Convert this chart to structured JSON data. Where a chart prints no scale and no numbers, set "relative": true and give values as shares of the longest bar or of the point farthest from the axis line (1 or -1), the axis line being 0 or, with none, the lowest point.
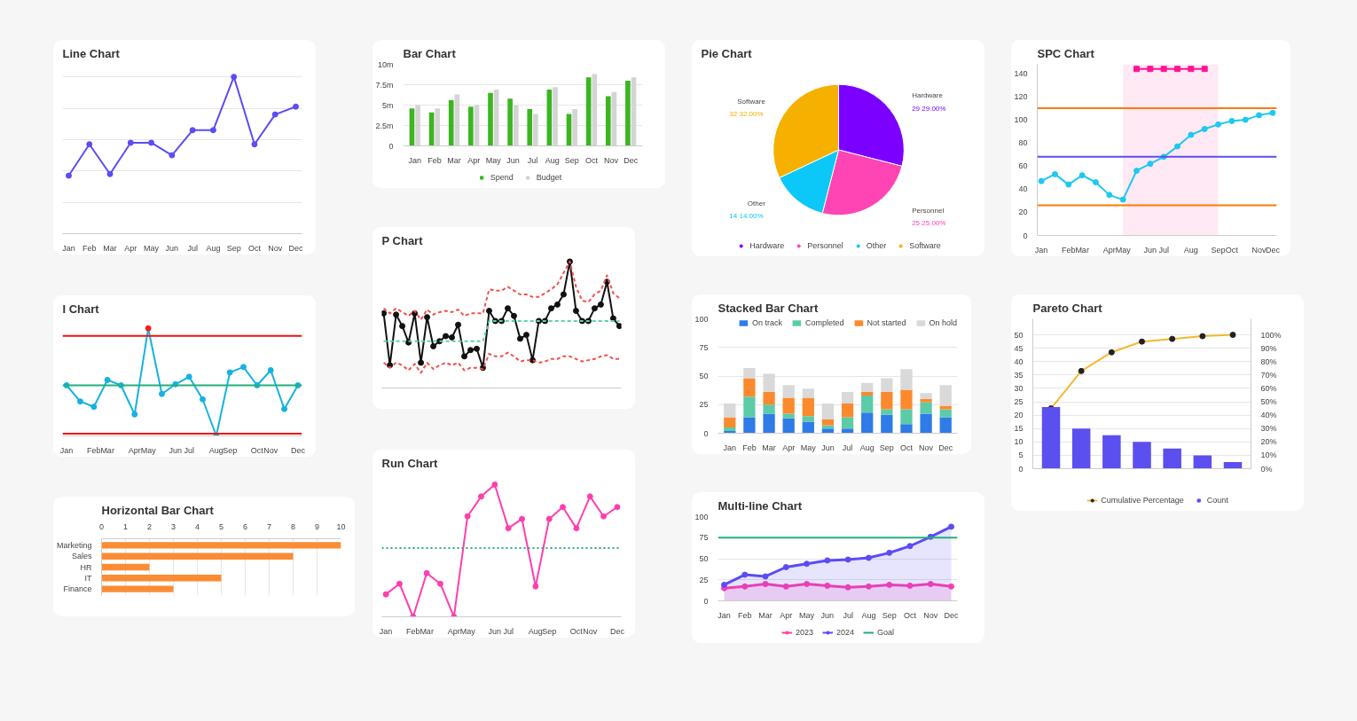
{
  "chart_data": [
    {
      "type": "line",
      "title": "Line Chart",
      "categories": [
        "Jan",
        "Feb",
        "Mar",
        "Apr",
        "May",
        "Jun",
        "Jul",
        "Aug",
        "Sep",
        "Oct",
        "Nov",
        "Dec"
      ],
      "relative": true,
      "grid": "y",
      "marker": "circle",
      "series": [
        {
          "color": "#5b4cf5",
          "values": [
            0.37,
            0.57,
            0.38,
            0.58,
            0.58,
            0.5,
            0.66,
            0.66,
            1,
            0.57,
            0.76,
            0.81
          ]
        }
      ]
    },
    {
      "type": "line",
      "title": "I Chart",
      "categories": [
        "Jan",
        null,
        "Feb",
        "Mar",
        null,
        "Apr",
        "May",
        null,
        "Jun",
        "Jul",
        null,
        "Aug",
        "Sep",
        null,
        "Oct",
        "Nov",
        null,
        "Dec"
      ],
      "relative": true,
      "marker": "circle",
      "series": [
        {
          "color": "#16b2e0",
          "values": [
            0.47,
            0.32,
            0.27,
            0.52,
            0.47,
            0.2,
            1,
            0.39,
            0.48,
            0.55,
            0.34,
            0,
            0.59,
            0.64,
            0.47,
            0.61,
            0.25,
            0.47
          ],
          "colors": [
            "#16b2e0",
            "#16b2e0",
            "#16b2e0",
            "#16b2e0",
            "#16b2e0",
            "#16b2e0",
            "#ff1a1a",
            "#16b2e0",
            "#16b2e0",
            "#16b2e0",
            "#16b2e0",
            "#16b2e0",
            "#16b2e0",
            "#16b2e0",
            "#16b2e0",
            "#16b2e0",
            "#16b2e0",
            "#16b2e0"
          ]
        }
      ],
      "ref_lines": [
        {
          "axis": "y",
          "value": 0.93,
          "color": "#ee1111"
        },
        {
          "axis": "y",
          "value": 0.47,
          "color": "#22b07d"
        },
        {
          "axis": "y",
          "value": 0.02,
          "color": "#ee1111"
        }
      ]
    },
    {
      "type": "bar",
      "orientation": "horizontal",
      "title": "Horizontal Bar Chart",
      "categories": [
        "Marketing",
        "Sales",
        "HR",
        "IT",
        "Finance"
      ],
      "values": [
        10,
        8,
        2,
        5,
        3
      ],
      "color": "#fb8c34",
      "xlim": [
        0,
        10
      ],
      "xticks": [
        0,
        1,
        2,
        3,
        4,
        5,
        6,
        7,
        8,
        9,
        10
      ],
      "grid": "x"
    },
    {
      "type": "bar",
      "title": "Bar Chart",
      "categories": [
        "Jan",
        "Feb",
        "Mar",
        "Apr",
        "May",
        "Jun",
        "Jul",
        "Aug",
        "Sep",
        "Oct",
        "Nov",
        "Dec"
      ],
      "ylim": [
        0,
        10
      ],
      "yticks": [
        0,
        {
          "value": 2.5,
          "label": "2.5m"
        },
        {
          "value": 5,
          "label": "5m"
        },
        {
          "value": 7.5,
          "label": "7.5m"
        },
        {
          "value": 10,
          "label": "10m"
        }
      ],
      "grid": "y",
      "legend": "bottom",
      "series": [
        {
          "name": "Spend",
          "color": "#3cb521",
          "values": [
            4.6,
            4.1,
            5.6,
            4.8,
            6.5,
            5.8,
            4.5,
            6.9,
            3.9,
            8.4,
            6.1,
            8.0
          ]
        },
        {
          "name": "Budget",
          "color": "#d4d4d4",
          "values": [
            5.0,
            4.6,
            6.3,
            5.0,
            6.9,
            5.0,
            3.9,
            7.2,
            4.5,
            8.8,
            6.6,
            8.4
          ]
        }
      ]
    },
    {
      "type": "line",
      "title": "P Chart",
      "categories": [
        null,
        null,
        null,
        null,
        null,
        null,
        null,
        null,
        null,
        null,
        null,
        null,
        null,
        null,
        null,
        null,
        null,
        null,
        null,
        null,
        null,
        null,
        null,
        null,
        null,
        null,
        null,
        null,
        null,
        null,
        null,
        null,
        null,
        null,
        null,
        null,
        null,
        null,
        null
      ],
      "relative": true,
      "series": [
        {
          "color": "#111111",
          "marker": "circle",
          "values": [
            0.59,
            0.18,
            0.58,
            0.49,
            0.36,
            0.59,
            0.2,
            0.56,
            0.33,
            0.37,
            0.41,
            0.4,
            0.5,
            0.25,
            0.3,
            0.31,
            0.16,
            0.61,
            0.53,
            0.53,
            0.63,
            0.57,
            0.39,
            0.42,
            0.22,
            0.53,
            0.53,
            0.63,
            0.66,
            0.74,
            1,
            0.61,
            0.53,
            0.53,
            0.63,
            0.66,
            0.84,
            0.55,
            0.49
          ]
        },
        {
          "color": "#5fd3a8",
          "line_style": "dashed",
          "values": [
            0.37,
            0.37,
            0.37,
            0.37,
            0.37,
            0.37,
            0.37,
            0.37,
            0.37,
            0.37,
            0.37,
            0.37,
            0.37,
            0.37,
            0.37,
            0.37,
            0.37,
            0.53,
            0.53,
            0.53,
            0.53,
            0.53,
            0.53,
            0.53,
            0.53,
            0.53,
            0.53,
            0.53,
            0.53,
            0.53,
            0.53,
            0.53,
            0.53,
            0.53,
            0.53,
            0.53,
            0.53,
            0.53,
            0.53
          ]
        },
        {
          "color": "#f0524f",
          "line_style": "dashed",
          "values": [
            0.63,
            0.59,
            0.63,
            0.6,
            0.57,
            0.61,
            0.54,
            0.62,
            0.58,
            0.6,
            0.61,
            0.6,
            0.62,
            0.57,
            0.59,
            0.59,
            0.59,
            0.78,
            0.77,
            0.77,
            0.8,
            0.77,
            0.74,
            0.74,
            0.72,
            0.72,
            0.75,
            0.78,
            0.82,
            0.91,
            1,
            0.8,
            0.69,
            0.68,
            0.74,
            0.77,
            0.89,
            0.75,
            0.71
          ]
        },
        {
          "color": "#f0524f",
          "line_style": "dashed",
          "values": [
            0.2,
            0.16,
            0.2,
            0.18,
            0.14,
            0.19,
            0.12,
            0.2,
            0.15,
            0.18,
            0.2,
            0.18,
            0.2,
            0.14,
            0.16,
            0.16,
            0.15,
            0.27,
            0.25,
            0.25,
            0.28,
            0.25,
            0.21,
            0.22,
            0.22,
            0.2,
            0.21,
            0.23,
            0.23,
            0.25,
            0.25,
            0.23,
            0.21,
            0.22,
            0.23,
            0.25,
            0.26,
            0.23,
            0.23
          ]
        }
      ]
    },
    {
      "type": "line",
      "title": "Run Chart",
      "categories": [
        "Jan",
        null,
        "Feb",
        "Mar",
        null,
        "Apr",
        "May",
        null,
        "Jun",
        "Jul",
        null,
        "Aug",
        "Sep",
        null,
        "Oct",
        "Nov",
        null,
        "Dec"
      ],
      "relative": true,
      "marker": "circle",
      "series": [
        {
          "color": "#ff3fae",
          "values": [
            0.17,
            0.25,
            0,
            0.33,
            0.25,
            0,
            0.76,
            0.91,
            1,
            0.67,
            0.74,
            0.23,
            0.74,
            0.83,
            0.67,
            0.91,
            0.76,
            0.83
          ]
        }
      ],
      "ref_lines": [
        {
          "axis": "y",
          "value": 0.52,
          "color": "#22b07d",
          "line_style": "dotted"
        }
      ]
    },
    {
      "type": "pie",
      "title": "Pie Chart",
      "categories": [
        "Hardware",
        "Personnel",
        "Other",
        "Software"
      ],
      "values": [
        29,
        25,
        14,
        32
      ],
      "colors": [
        "#7b00ff",
        "#ff44b4",
        "#0cc8f8",
        "#f5b000"
      ],
      "value_labels": [
        "29  29.00%",
        "25  25.00%",
        "14  14.00%",
        "32  32.00%"
      ],
      "legend": "bottom"
    },
    {
      "type": "bar",
      "stacked": true,
      "title": "Stacked Bar Chart",
      "categories": [
        "Jan",
        "Feb",
        "Mar",
        "Apr",
        "May",
        "Jun",
        "Jul",
        "Aug",
        "Sep",
        "Oct",
        "Nov",
        "Dec"
      ],
      "ylim": [
        0,
        100
      ],
      "yticks": [
        0,
        25,
        50,
        75,
        100
      ],
      "grid": "y",
      "legend": "top right",
      "series": [
        {
          "name": "On track",
          "color": "#2f7be8",
          "values": [
            2,
            14,
            17,
            13,
            10,
            4,
            4,
            18,
            16,
            8,
            17,
            14
          ]
        },
        {
          "name": "Completed",
          "color": "#5ccba8",
          "values": [
            3,
            18,
            8,
            4,
            5,
            3,
            10,
            15,
            5,
            13,
            10,
            7
          ]
        },
        {
          "name": "Not started",
          "color": "#fb8a2e",
          "values": [
            9,
            16,
            11,
            14,
            16,
            5,
            12,
            3,
            15,
            17,
            3,
            3
          ]
        },
        {
          "name": "On hold",
          "color": "#d9d9d9",
          "values": [
            12,
            9,
            16,
            11,
            8,
            14,
            10,
            8,
            12,
            18,
            5,
            18
          ]
        }
      ]
    },
    {
      "type": "area",
      "title": "Multi-line Chart",
      "categories": [
        "Jan",
        "Feb",
        "Mar",
        "Apr",
        "May",
        "Jun",
        "Jul",
        "Aug",
        "Sep",
        "Oct",
        "Nov",
        "Dec"
      ],
      "ylim": [
        0,
        100
      ],
      "yticks": [
        0,
        25,
        50,
        75,
        100
      ],
      "grid": "y",
      "legend": "bottom",
      "marker": "circle",
      "series": [
        {
          "name": "2023",
          "color": "#ff3fae",
          "values": [
            15,
            17,
            20,
            17,
            20,
            18,
            16,
            17,
            19,
            18,
            20,
            17
          ]
        },
        {
          "name": "2024",
          "color": "#5b4cf5",
          "values": [
            19,
            31,
            29,
            40,
            44,
            48,
            49,
            51,
            57,
            65,
            76,
            88
          ]
        }
      ],
      "ref_lines": [
        {
          "axis": "y",
          "value": 75,
          "label": "Goal",
          "color": "#22b07d"
        }
      ]
    },
    {
      "type": "line",
      "title": "SPC Chart",
      "categories": [
        "Jan",
        null,
        "Feb",
        "Mar",
        null,
        "Apr",
        "May",
        null,
        "Jun",
        "Jul",
        null,
        "Aug",
        null,
        "Sep",
        "Oct",
        null,
        "Nov",
        "Dec"
      ],
      "ylim": [
        0,
        148
      ],
      "yticks": [
        0,
        20,
        40,
        60,
        80,
        100,
        120,
        140
      ],
      "marker": "circle",
      "series": [
        {
          "color": "#1ec8f0",
          "values": [
            47,
            53,
            44,
            52,
            46,
            35,
            31,
            56,
            62,
            68,
            77,
            87,
            92,
            96,
            99,
            100,
            104,
            106
          ]
        },
        {
          "color": "#ff1493",
          "marker": "square",
          "values": [
            null,
            null,
            null,
            null,
            null,
            null,
            null,
            144,
            144,
            144,
            144,
            144,
            144,
            null,
            null,
            null,
            null,
            null
          ]
        }
      ],
      "ref_lines": [
        {
          "axis": "y",
          "value": 110,
          "color": "#ff7a00"
        },
        {
          "axis": "y",
          "value": 68,
          "color": "#5b4cf5"
        },
        {
          "axis": "y",
          "value": 26,
          "color": "#ff7a00"
        }
      ],
      "bands": [
        {
          "axis": "x",
          "from": "May",
          "to": "Sep",
          "color": "#ffe4f2"
        }
      ]
    },
    {
      "type": "bar",
      "title": "Pareto Chart",
      "categories": [
        null,
        null,
        null,
        null,
        null,
        null,
        null
      ],
      "ylim": [
        0,
        56
      ],
      "yticks": [
        0,
        5,
        10,
        15,
        20,
        25,
        30,
        35,
        40,
        45,
        50
      ],
      "y2lim": [
        0,
        112
      ],
      "y2ticks": [
        {
          "value": 0,
          "label": "0%"
        },
        {
          "value": 10,
          "label": "10%"
        },
        {
          "value": 20,
          "label": "20%"
        },
        {
          "value": 30,
          "label": "30%"
        },
        {
          "value": 40,
          "label": "40%"
        },
        {
          "value": 50,
          "label": "50%"
        },
        {
          "value": 60,
          "label": "60%"
        },
        {
          "value": 70,
          "label": "70%"
        },
        {
          "value": 80,
          "label": "80%"
        },
        {
          "value": 90,
          "label": "90%"
        },
        {
          "value": 100,
          "label": "100%"
        }
      ],
      "grid": "y",
      "legend": "bottom",
      "series": [
        {
          "name": "Cumulative Percentage",
          "type": "line",
          "axis": "y2",
          "marker": "circle",
          "color": "#f5b82e",
          "colors": [
            "#222222",
            "#222222",
            "#222222",
            "#222222",
            "#222222",
            "#222222",
            "#222222"
          ],
          "values": [
            45,
            73,
            87,
            95,
            97,
            99,
            100
          ]
        },
        {
          "name": "Count",
          "color": "#5b4ff0",
          "values": [
            23,
            15,
            12.5,
            10,
            7.5,
            5,
            2.5
          ]
        }
      ]
    }
  ]
}
